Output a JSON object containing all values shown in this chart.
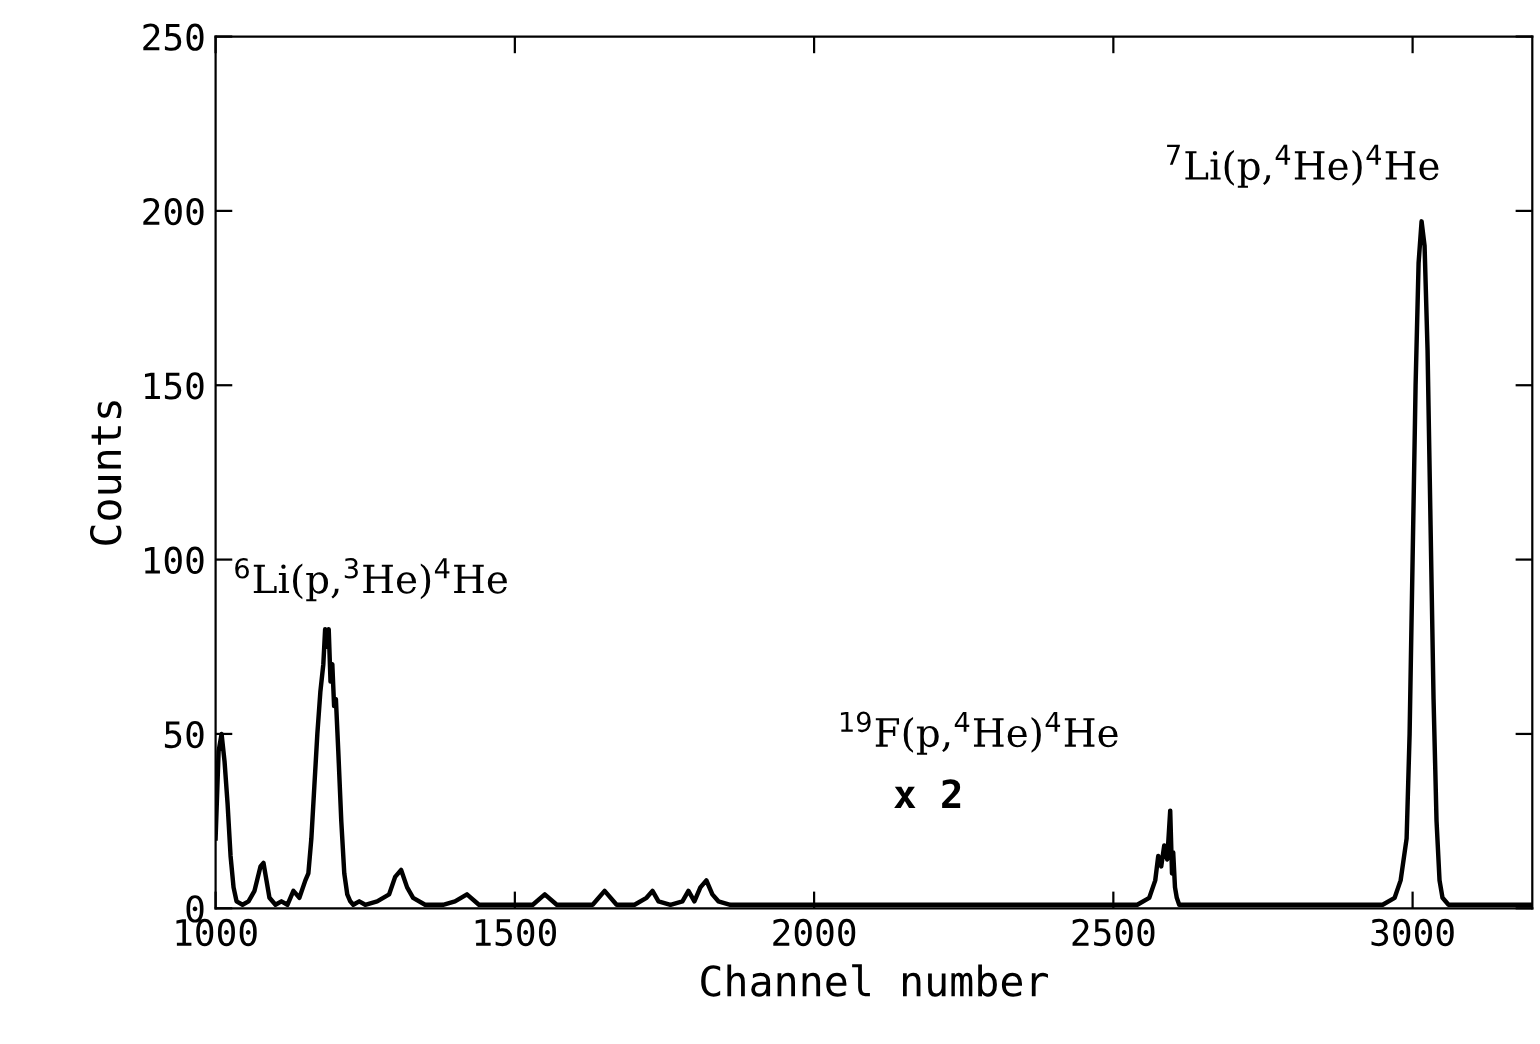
{
  "chart_data": {
    "type": "line",
    "xlabel": "Channel number",
    "ylabel": "Counts",
    "xlim": [
      1000,
      3200
    ],
    "ylim": [
      0,
      250
    ],
    "xticks": [
      1000,
      1500,
      2000,
      2500,
      3000
    ],
    "yticks": [
      0,
      50,
      100,
      150,
      200,
      250
    ],
    "grid": false,
    "marker": "none",
    "line_style": "solid",
    "series": [
      {
        "color": "#000000",
        "x": [
          1000,
          1005,
          1010,
          1015,
          1020,
          1025,
          1030,
          1035,
          1045,
          1055,
          1065,
          1075,
          1080,
          1085,
          1090,
          1100,
          1110,
          1120,
          1130,
          1140,
          1150,
          1155,
          1160,
          1165,
          1170,
          1175,
          1180,
          1183,
          1186,
          1189,
          1192,
          1195,
          1198,
          1201,
          1205,
          1210,
          1215,
          1220,
          1225,
          1230,
          1240,
          1250,
          1270,
          1290,
          1300,
          1310,
          1320,
          1330,
          1350,
          1380,
          1400,
          1420,
          1440,
          1470,
          1500,
          1530,
          1550,
          1570,
          1600,
          1630,
          1650,
          1670,
          1700,
          1720,
          1730,
          1740,
          1760,
          1780,
          1790,
          1800,
          1810,
          1820,
          1830,
          1840,
          1860,
          1900,
          2000,
          2100,
          2200,
          2300,
          2400,
          2500,
          2540,
          2560,
          2570,
          2575,
          2580,
          2585,
          2590,
          2595,
          2598,
          2600,
          2603,
          2606,
          2610,
          2615,
          2620,
          2640,
          2700,
          2800,
          2900,
          2950,
          2970,
          2980,
          2990,
          2995,
          3000,
          3005,
          3010,
          3015,
          3020,
          3025,
          3030,
          3035,
          3040,
          3045,
          3050,
          3055,
          3060,
          3070,
          3080,
          3100,
          3150,
          3200
        ],
        "values": [
          20,
          45,
          50,
          42,
          30,
          15,
          6,
          2,
          1,
          2,
          5,
          12,
          13,
          8,
          3,
          1,
          2,
          1,
          5,
          3,
          8,
          10,
          20,
          35,
          50,
          62,
          70,
          80,
          75,
          80,
          65,
          70,
          58,
          60,
          45,
          25,
          10,
          4,
          2,
          1,
          2,
          1,
          2,
          4,
          9,
          11,
          6,
          3,
          1,
          1,
          2,
          4,
          1,
          1,
          1,
          1,
          4,
          1,
          1,
          1,
          5,
          1,
          1,
          3,
          5,
          2,
          1,
          2,
          5,
          2,
          6,
          8,
          4,
          2,
          1,
          1,
          1,
          1,
          1,
          1,
          1,
          1,
          1,
          3,
          8,
          15,
          12,
          18,
          14,
          28,
          10,
          16,
          6,
          3,
          1,
          1,
          1,
          1,
          1,
          1,
          1,
          1,
          3,
          8,
          20,
          50,
          100,
          150,
          185,
          197,
          190,
          160,
          110,
          60,
          25,
          8,
          3,
          2,
          1,
          1,
          1,
          1,
          1,
          1
        ]
      }
    ],
    "annotations": [
      {
        "text": "$^{6}$Li(p,$^{3}$He)$^{4}$He",
        "x": 1190,
        "y": 80
      },
      {
        "text": "$^{7}$Li(p,$^{4}$He)$^{4}$He",
        "x": 3025,
        "y": 197
      },
      {
        "text": "$^{19}$F(p,$^{4}$He)$^{4}$He",
        "x": 2600,
        "y": 28
      },
      "x 2"
    ]
  }
}
